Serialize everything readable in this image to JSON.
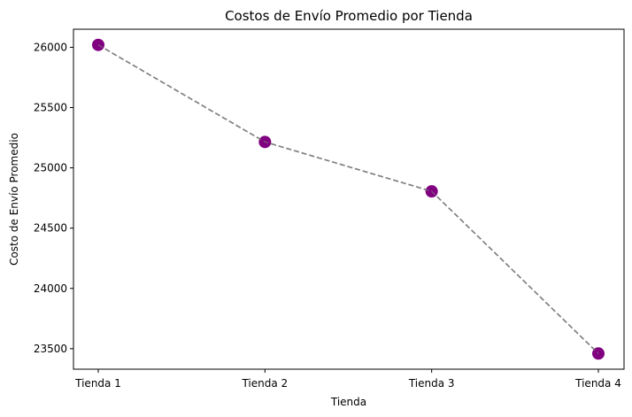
{
  "chart_data": {
    "type": "line",
    "title": "Costos de Envío Promedio por Tienda",
    "xlabel": "Tienda",
    "ylabel": "Costo de Envío Promedio",
    "categories": [
      "Tienda 1",
      "Tienda 2",
      "Tienda 3",
      "Tienda 4"
    ],
    "series": [
      {
        "values": [
          26020,
          25215,
          24805,
          23460
        ],
        "line_color": "#808080",
        "line_style": "dashed",
        "marker_color": "#800080",
        "marker": "circle"
      }
    ],
    "yticks": [
      23500,
      24000,
      24500,
      25000,
      25500,
      26000
    ],
    "ylim": [
      23330,
      26150
    ],
    "grid": false,
    "legend": "none"
  }
}
